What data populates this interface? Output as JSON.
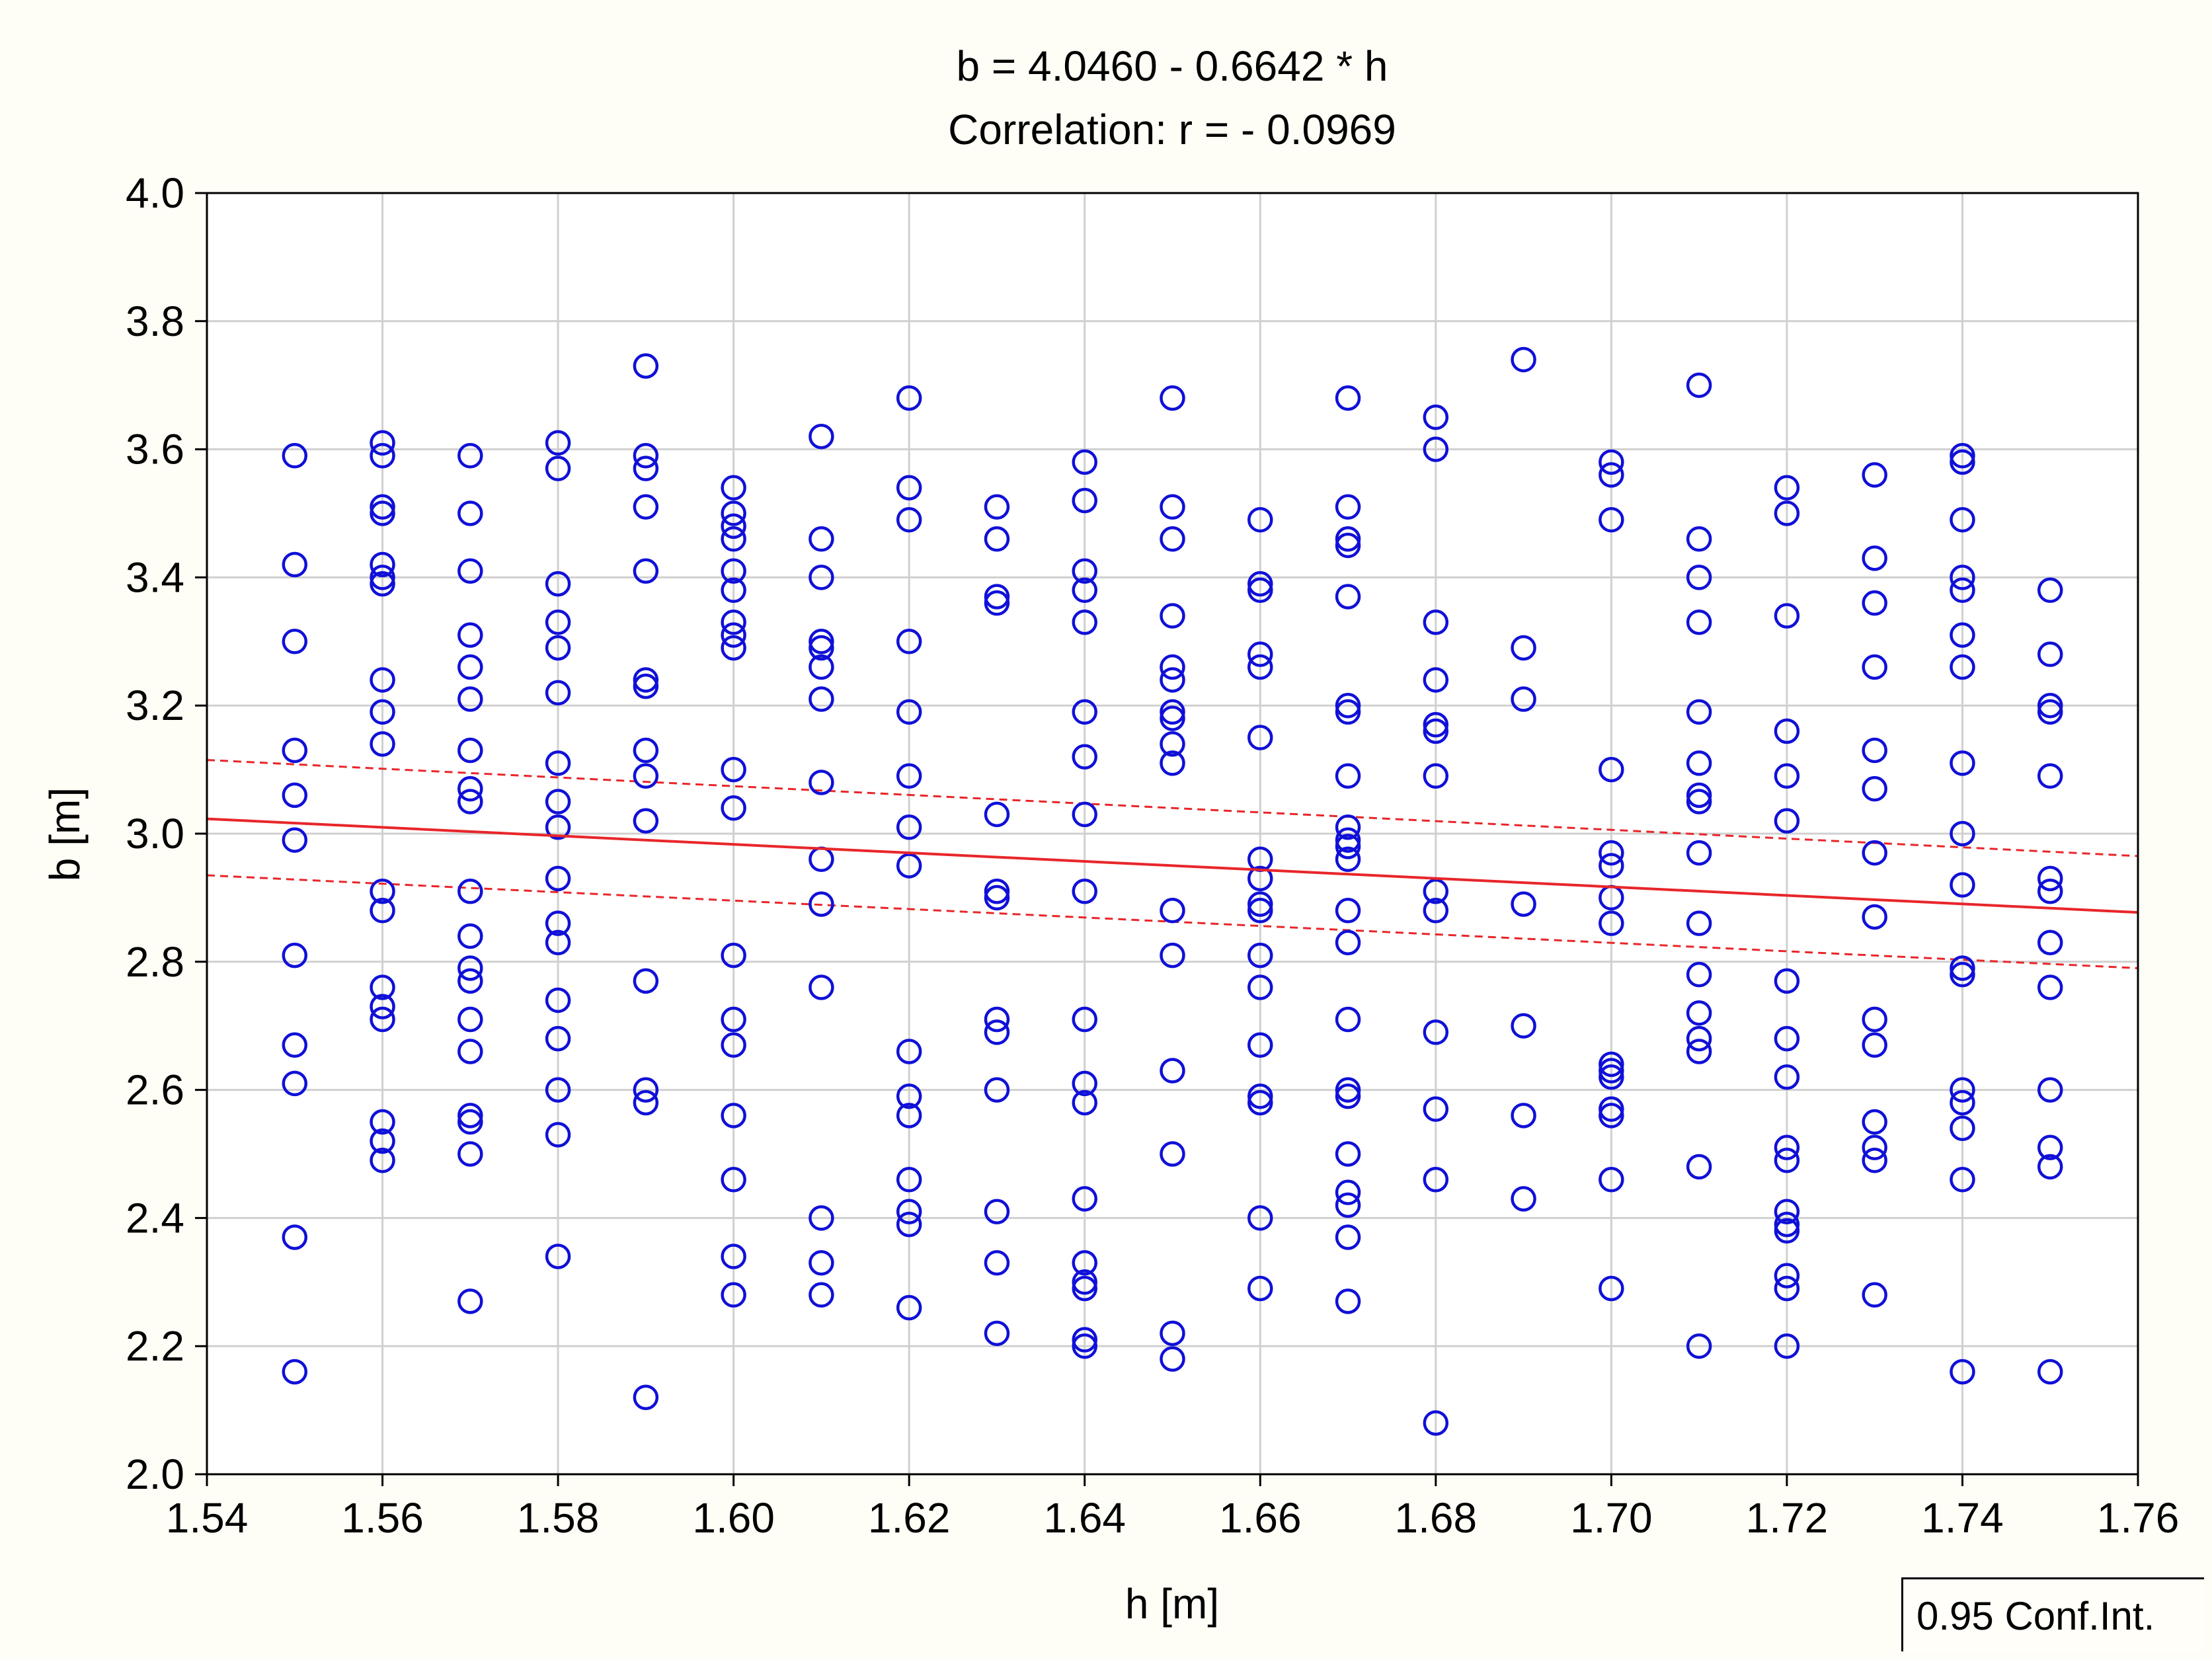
{
  "chart_data": {
    "type": "scatter",
    "title": "b = 4.0460 - 0.6642 * h",
    "subtitle": "Correlation: r = - 0.0969",
    "xlabel": "h [m]",
    "ylabel": "b [m]",
    "xlim": [
      1.54,
      1.76
    ],
    "ylim": [
      2.0,
      4.0
    ],
    "xticks": [
      1.54,
      1.56,
      1.58,
      1.6,
      1.62,
      1.64,
      1.66,
      1.68,
      1.7,
      1.72,
      1.74,
      1.76
    ],
    "xtick_labels": [
      "1.54",
      "1.56",
      "1.58",
      "1.60",
      "1.62",
      "1.64",
      "1.66",
      "1.68",
      "1.70",
      "1.72",
      "1.74",
      "1.76"
    ],
    "yticks": [
      2.0,
      2.2,
      2.4,
      2.6,
      2.8,
      3.0,
      3.2,
      3.4,
      3.6,
      3.8,
      4.0
    ],
    "ytick_labels": [
      "2.0",
      "2.2",
      "2.4",
      "2.6",
      "2.8",
      "3.0",
      "3.2",
      "3.4",
      "3.6",
      "3.8",
      "4.0"
    ],
    "grid": true,
    "legend": {
      "label": "0.95 Conf.Int.",
      "placement": "bottom-right"
    },
    "regression": {
      "intercept": 4.046,
      "slope": -0.6642
    },
    "confidence_band": {
      "x": [
        1.54,
        1.76
      ],
      "upper": [
        3.115,
        2.965
      ],
      "lower": [
        2.935,
        2.79
      ]
    },
    "series": [
      {
        "h": 1.55,
        "b": [
          3.59,
          3.42,
          3.3,
          3.13,
          3.06,
          2.99,
          2.81,
          2.67,
          2.61,
          2.37,
          2.16
        ]
      },
      {
        "h": 1.56,
        "b": [
          3.61,
          3.59,
          3.51,
          3.5,
          3.42,
          3.4,
          3.39,
          3.24,
          3.19,
          3.14,
          2.91,
          2.88,
          2.76,
          2.73,
          2.71,
          2.55,
          2.52,
          2.49
        ]
      },
      {
        "h": 1.57,
        "b": [
          3.59,
          3.5,
          3.41,
          3.31,
          3.26,
          3.21,
          3.13,
          3.07,
          3.05,
          2.91,
          2.84,
          2.79,
          2.77,
          2.71,
          2.66,
          2.56,
          2.55,
          2.5,
          2.27
        ]
      },
      {
        "h": 1.58,
        "b": [
          3.61,
          3.57,
          3.39,
          3.33,
          3.29,
          3.22,
          3.11,
          3.05,
          3.01,
          2.93,
          2.86,
          2.83,
          2.74,
          2.68,
          2.6,
          2.53,
          2.34
        ]
      },
      {
        "h": 1.59,
        "b": [
          3.73,
          3.59,
          3.57,
          3.51,
          3.41,
          3.24,
          3.23,
          3.13,
          3.09,
          3.02,
          2.77,
          2.6,
          2.58,
          2.12
        ]
      },
      {
        "h": 1.6,
        "b": [
          3.54,
          3.5,
          3.48,
          3.46,
          3.41,
          3.38,
          3.33,
          3.31,
          3.29,
          3.1,
          3.04,
          2.81,
          2.71,
          2.67,
          2.56,
          2.46,
          2.34,
          2.28
        ]
      },
      {
        "h": 1.61,
        "b": [
          3.62,
          3.46,
          3.4,
          3.3,
          3.29,
          3.26,
          3.21,
          3.08,
          2.96,
          2.89,
          2.76,
          2.4,
          2.33,
          2.28
        ]
      },
      {
        "h": 1.62,
        "b": [
          3.68,
          3.54,
          3.49,
          3.3,
          3.19,
          3.09,
          3.01,
          2.95,
          2.66,
          2.59,
          2.56,
          2.46,
          2.41,
          2.39,
          2.26
        ]
      },
      {
        "h": 1.63,
        "b": [
          3.51,
          3.46,
          3.37,
          3.36,
          3.03,
          2.91,
          2.9,
          2.71,
          2.69,
          2.6,
          2.41,
          2.33,
          2.22
        ]
      },
      {
        "h": 1.64,
        "b": [
          3.58,
          3.52,
          3.41,
          3.38,
          3.33,
          3.19,
          3.12,
          3.03,
          2.91,
          2.71,
          2.61,
          2.58,
          2.43,
          2.33,
          2.3,
          2.29,
          2.21,
          2.2
        ]
      },
      {
        "h": 1.65,
        "b": [
          3.68,
          3.51,
          3.46,
          3.34,
          3.26,
          3.24,
          3.19,
          3.18,
          3.14,
          3.11,
          2.88,
          2.81,
          2.63,
          2.5,
          2.22,
          2.18
        ]
      },
      {
        "h": 1.66,
        "b": [
          3.49,
          3.39,
          3.38,
          3.28,
          3.26,
          3.15,
          2.96,
          2.93,
          2.89,
          2.88,
          2.81,
          2.76,
          2.67,
          2.59,
          2.58,
          2.4,
          2.29
        ]
      },
      {
        "h": 1.67,
        "b": [
          3.68,
          3.51,
          3.46,
          3.45,
          3.37,
          3.2,
          3.19,
          3.09,
          3.01,
          2.99,
          2.98,
          2.96,
          2.88,
          2.83,
          2.71,
          2.6,
          2.59,
          2.5,
          2.44,
          2.42,
          2.37,
          2.27
        ]
      },
      {
        "h": 1.68,
        "b": [
          3.65,
          3.6,
          3.33,
          3.24,
          3.17,
          3.16,
          3.09,
          2.91,
          2.88,
          2.69,
          2.57,
          2.46,
          2.08
        ]
      },
      {
        "h": 1.69,
        "b": [
          3.74,
          3.29,
          3.21,
          2.89,
          2.7,
          2.56,
          2.43
        ]
      },
      {
        "h": 1.7,
        "b": [
          3.58,
          3.56,
          3.49,
          3.1,
          2.97,
          2.95,
          2.9,
          2.86,
          2.64,
          2.63,
          2.62,
          2.57,
          2.56,
          2.46,
          2.29
        ]
      },
      {
        "h": 1.71,
        "b": [
          3.7,
          3.46,
          3.4,
          3.33,
          3.19,
          3.11,
          3.06,
          3.05,
          2.97,
          2.86,
          2.78,
          2.72,
          2.68,
          2.66,
          2.48,
          2.2
        ]
      },
      {
        "h": 1.72,
        "b": [
          3.54,
          3.5,
          3.34,
          3.16,
          3.09,
          3.02,
          2.77,
          2.68,
          2.62,
          2.51,
          2.49,
          2.41,
          2.39,
          2.38,
          2.31,
          2.29,
          2.2
        ]
      },
      {
        "h": 1.73,
        "b": [
          3.56,
          3.43,
          3.36,
          3.26,
          3.13,
          3.07,
          2.97,
          2.87,
          2.71,
          2.67,
          2.55,
          2.51,
          2.49,
          2.28
        ]
      },
      {
        "h": 1.74,
        "b": [
          3.59,
          3.58,
          3.49,
          3.4,
          3.38,
          3.31,
          3.26,
          3.11,
          3.0,
          2.92,
          2.79,
          2.78,
          2.6,
          2.58,
          2.54,
          2.46,
          2.16
        ]
      },
      {
        "h": 1.75,
        "b": [
          3.38,
          3.28,
          3.2,
          3.19,
          3.09,
          2.93,
          2.91,
          2.83,
          2.76,
          2.6,
          2.51,
          2.48,
          2.16
        ]
      }
    ]
  }
}
